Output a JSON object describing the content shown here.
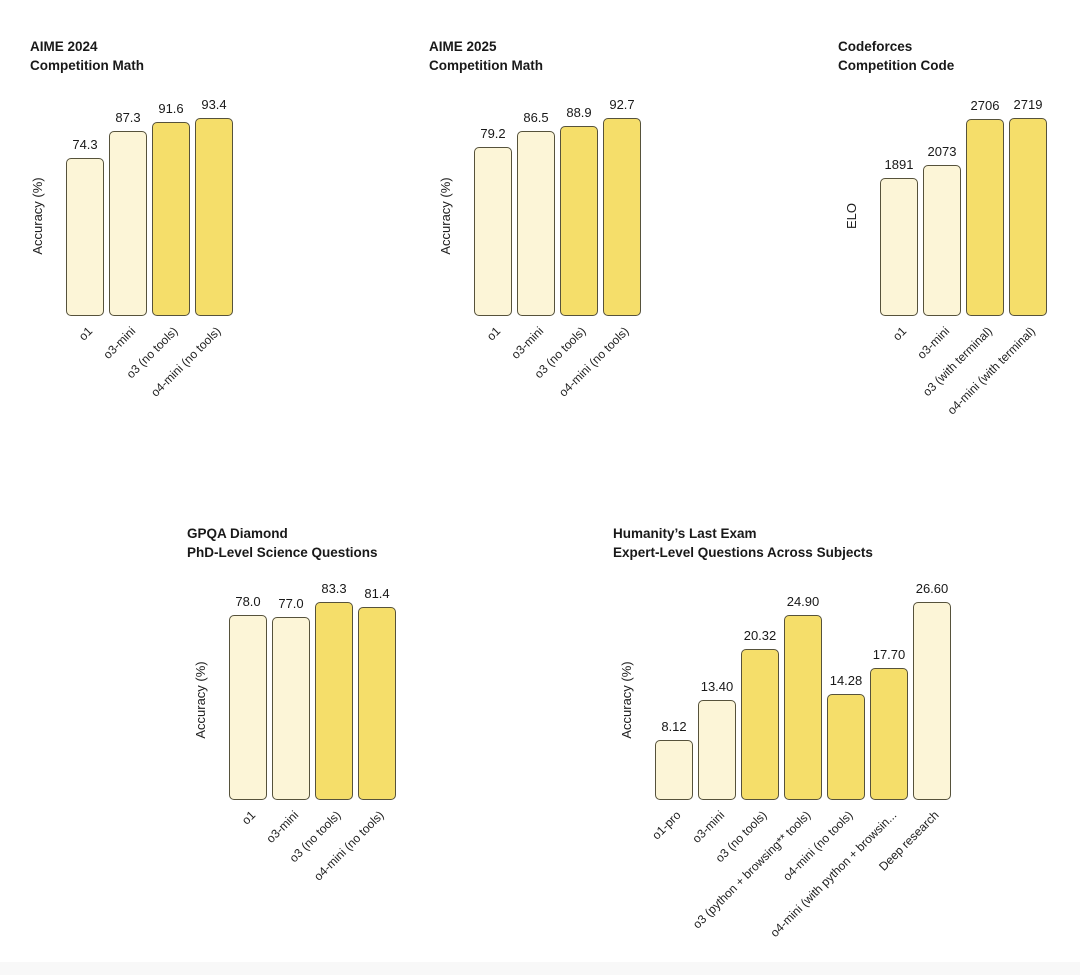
{
  "palette": {
    "cream": "#FCF5D7",
    "yellow": "#F5DE6A",
    "bar_border": "#56523B",
    "text": "#191919",
    "background": "#FFFFFF",
    "footer_band": "#F8F8F8"
  },
  "chart_data": [
    {
      "type": "bar",
      "title": "AIME 2024",
      "subtitle": "Competition Math",
      "ylabel": "Accuracy (%)",
      "categories": [
        "o1",
        "o3-mini",
        "o3 (no tools)",
        "o4-mini (no tools)"
      ],
      "values": [
        74.3,
        87.3,
        91.6,
        93.4
      ],
      "value_labels": [
        "74.3",
        "87.3",
        "91.6",
        "93.4"
      ],
      "bar_colors": [
        "cream",
        "cream",
        "yellow",
        "yellow"
      ],
      "grid": false,
      "y_axis_ticks": "none",
      "bar_scaling": "relative-to-max-value"
    },
    {
      "type": "bar",
      "title": "AIME 2025",
      "subtitle": "Competition Math",
      "ylabel": "Accuracy (%)",
      "categories": [
        "o1",
        "o3-mini",
        "o3 (no tools)",
        "o4-mini (no tools)"
      ],
      "values": [
        79.2,
        86.5,
        88.9,
        92.7
      ],
      "value_labels": [
        "79.2",
        "86.5",
        "88.9",
        "92.7"
      ],
      "bar_colors": [
        "cream",
        "cream",
        "yellow",
        "yellow"
      ],
      "grid": false,
      "y_axis_ticks": "none",
      "bar_scaling": "relative-to-max-value"
    },
    {
      "type": "bar",
      "title": "Codeforces",
      "subtitle": "Competition Code",
      "ylabel": "ELO",
      "categories": [
        "o1",
        "o3-mini",
        "o3 (with terminal)",
        "o4-mini (with terminal)"
      ],
      "values": [
        1891,
        2073,
        2706,
        2719
      ],
      "value_labels": [
        "1891",
        "2073",
        "2706",
        "2719"
      ],
      "bar_colors": [
        "cream",
        "cream",
        "yellow",
        "yellow"
      ],
      "grid": false,
      "y_axis_ticks": "none",
      "bar_scaling": "relative-to-max-value"
    },
    {
      "type": "bar",
      "title": "GPQA Diamond",
      "subtitle": "PhD-Level Science Questions",
      "ylabel": "Accuracy (%)",
      "categories": [
        "o1",
        "o3-mini",
        "o3 (no tools)",
        "o4-mini (no tools)"
      ],
      "values": [
        78.0,
        77.0,
        83.3,
        81.4
      ],
      "value_labels": [
        "78.0",
        "77.0",
        "83.3",
        "81.4"
      ],
      "bar_colors": [
        "cream",
        "cream",
        "yellow",
        "yellow"
      ],
      "grid": false,
      "y_axis_ticks": "none",
      "bar_scaling": "relative-to-max-value"
    },
    {
      "type": "bar",
      "title": "Humanity’s Last Exam",
      "subtitle": "Expert-Level Questions Across Subjects",
      "ylabel": "Accuracy (%)",
      "categories": [
        "o1-pro",
        "o3-mini",
        "o3 (no tools)",
        "o3 (python + browsing** tools)",
        "o4-mini (no tools)",
        "o4-mini (with python + browsin...",
        "Deep research"
      ],
      "values": [
        8.12,
        13.4,
        20.32,
        24.9,
        14.28,
        17.7,
        26.6
      ],
      "value_labels": [
        "8.12",
        "13.40",
        "20.32",
        "24.90",
        "14.28",
        "17.70",
        "26.60"
      ],
      "bar_colors": [
        "cream",
        "cream",
        "yellow",
        "yellow",
        "yellow",
        "yellow",
        "cream"
      ],
      "grid": false,
      "y_axis_ticks": "none",
      "bar_scaling": "relative-to-max-value"
    }
  ]
}
